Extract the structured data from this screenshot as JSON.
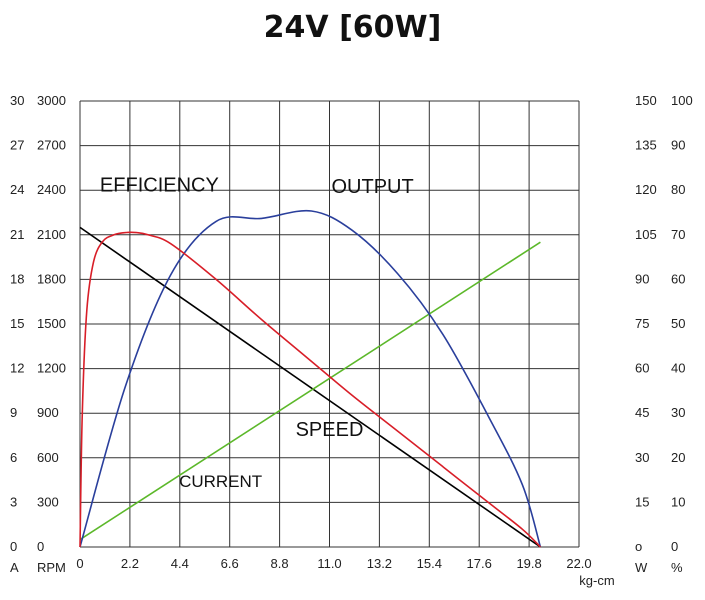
{
  "chart_data": {
    "type": "line",
    "title": "24V [60W]",
    "x": {
      "ticks": [
        0,
        2.2,
        4.4,
        6.6,
        8.8,
        11.0,
        13.2,
        15.4,
        17.6,
        19.8,
        22.0
      ],
      "tick_labels": [
        "0",
        "2.2",
        "4.4",
        "6.6",
        "8.8",
        "11.0",
        "13.2",
        "15.4",
        "17.6",
        "19.8",
        "22.0"
      ],
      "range": [
        0,
        22.0
      ],
      "unit_label": "kg-cm"
    },
    "left_axes": [
      {
        "unit_label": "A",
        "range": [
          0,
          30
        ],
        "tick_labels": [
          "0",
          "3",
          "6",
          "9",
          "12",
          "15",
          "18",
          "21",
          "24",
          "27",
          "30"
        ]
      },
      {
        "unit_label": "RPM",
        "range": [
          0,
          3000
        ],
        "tick_labels": [
          "0",
          "300",
          "600",
          "900",
          "1200",
          "1500",
          "1800",
          "2100",
          "2400",
          "2700",
          "3000"
        ]
      }
    ],
    "right_axes": [
      {
        "unit_label": "W",
        "range": [
          0,
          150
        ],
        "tick_labels": [
          "o",
          "15",
          "30",
          "45",
          "60",
          "75",
          "90",
          "105",
          "120",
          "135",
          "150"
        ]
      },
      {
        "unit_label": "%",
        "range": [
          0,
          100
        ],
        "tick_labels": [
          "0",
          "10",
          "20",
          "30",
          "40",
          "50",
          "60",
          "70",
          "80",
          "90",
          "100"
        ]
      }
    ],
    "grid": true,
    "series": [
      {
        "name": "SPEED",
        "axis": "RPM",
        "color": "#000000",
        "x": [
          0,
          20.3
        ],
        "y": [
          2150,
          0
        ]
      },
      {
        "name": "CURRENT",
        "axis": "A",
        "color": "#5cb82a",
        "x": [
          0,
          20.3
        ],
        "y": [
          0.5,
          20.5
        ]
      },
      {
        "name": "OUTPUT",
        "axis": "W",
        "color": "#2a3f9c",
        "x": [
          0,
          2,
          4,
          6,
          8,
          10.2,
          12,
          14,
          16,
          18,
          19.5,
          20.3
        ],
        "y": [
          0,
          54,
          91.5,
          109.5,
          110.5,
          113,
          106.5,
          92,
          71.5,
          44,
          21,
          0
        ]
      },
      {
        "name": "EFFICIENCY",
        "axis": "%",
        "color": "#d81e28",
        "x": [
          0,
          0.1,
          0.3,
          0.6,
          1.0,
          1.5,
          2.0,
          2.5,
          3.0,
          4.0,
          6.0,
          8.0,
          10.0,
          12.0,
          14.0,
          16.0,
          18.0,
          19.5,
          20.3
        ],
        "y": [
          0,
          30,
          53,
          64,
          68.5,
          70,
          70.5,
          70.5,
          70,
          68,
          60,
          51,
          42.5,
          34,
          26,
          18,
          10,
          4,
          0
        ]
      }
    ],
    "annotations": [
      {
        "text": "EFFICIENCY",
        "x": 3.5,
        "y_rpm": 2390
      },
      {
        "text": "OUTPUT",
        "x": 12.9,
        "y_rpm": 2380
      },
      {
        "text": "SPEED",
        "x": 11.0,
        "y_rpm": 745
      },
      {
        "text": "CURRENT",
        "x": 6.2,
        "y_rpm": 405
      }
    ]
  }
}
